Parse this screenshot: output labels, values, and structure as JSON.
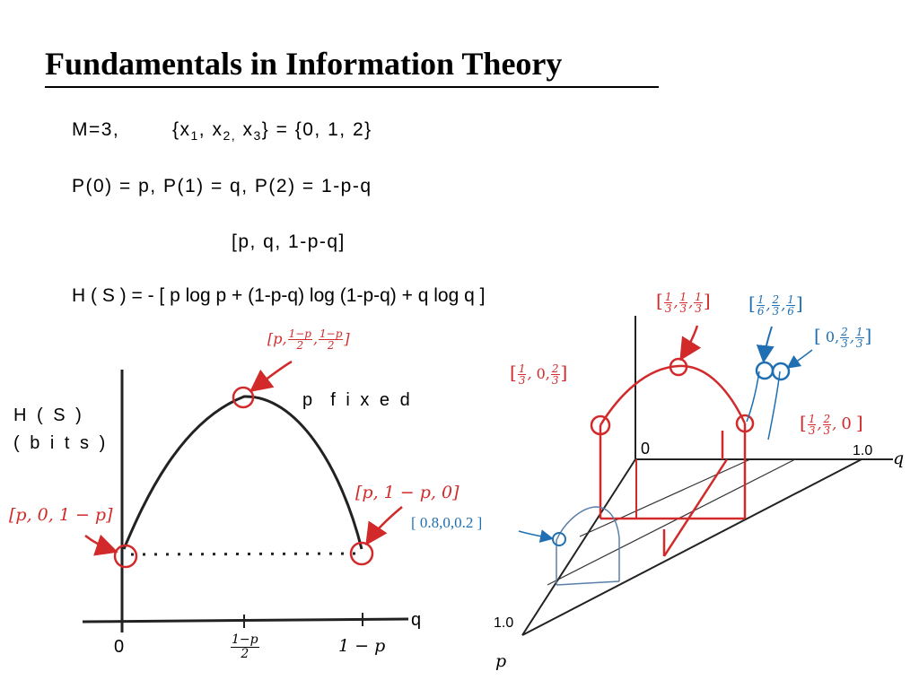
{
  "slide": {
    "title": "Fundamentals in Information Theory"
  },
  "body": {
    "line1_prefix": "M=3,",
    "line1_set_open": "{x",
    "line1_sub1": "1",
    "line1_sep1": ", x",
    "line1_sub2": "2,",
    "line1_sep2": " x",
    "line1_sub3": "3",
    "line1_rest": "} = {0, 1, 2}",
    "line2": "P(0) = p, P(1) = q, P(2) = 1-p-q",
    "line3": "[p, q, 1-p-q]",
    "line4": "H ( S ) = - [ p log p + (1-p-q) log (1-p-q) + q log q ]"
  },
  "left_graph": {
    "y_label_line1": "H ( S )",
    "y_label_line2": "( b i t s )",
    "note": "p  f i x e d",
    "x_axis_label": "q",
    "tick_zero": "0",
    "tick_mid_num": "1−p",
    "tick_mid_den": "2",
    "tick_right": "1 − p",
    "annot_left": "[p, 0, 1 − p]",
    "annot_right": "[p, 1 − p, 0]",
    "annot_top_open": "[p,",
    "annot_top_num1": "1−p",
    "annot_top_den1": "2",
    "annot_top_num2": "1−p",
    "annot_top_den2": "2",
    "annot_top_close": "]"
  },
  "right_graph": {
    "origin_label": "0",
    "q_tick": "1.0",
    "q_label": "q",
    "p_tick": "1.0",
    "p_label": "p",
    "annot_0_8": "[ 0.8,0,0.2 ]",
    "annot_thirds": [
      "1",
      "3",
      "1",
      "3",
      "1",
      "3"
    ],
    "annot_sixths": [
      "1",
      "6",
      "2",
      "3",
      "1",
      "6"
    ],
    "annot_0_23_13": [
      "0,",
      "2",
      "3",
      "1",
      "3"
    ],
    "annot_13_0_23": [
      "1",
      "3",
      "0,",
      "2",
      "3"
    ],
    "annot_13_23_0": [
      "1",
      "3",
      "2",
      "3",
      "0"
    ]
  },
  "colors": {
    "red": "#d22a2a",
    "blue": "#1f6fb2",
    "black": "#222222",
    "gray_blue": "#5b7fa6"
  }
}
